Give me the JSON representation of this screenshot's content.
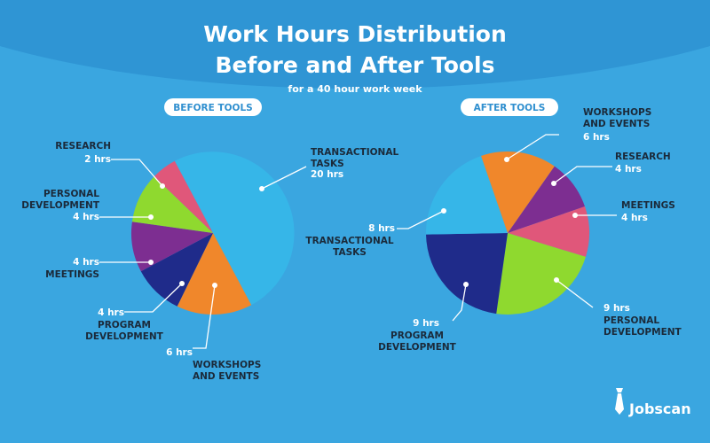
{
  "title_line1": "Work Hours Distribution",
  "title_line2": "Before and After Tools",
  "subtitle": "for a 40 hour work week",
  "brand": "Jobscan",
  "colors": {
    "background": "#3aa6e0",
    "header_arc": "#2f95d4",
    "label_text": "#1b2a3a",
    "value_text": "#ffffff"
  },
  "chart_data": [
    {
      "type": "pie",
      "title": "BEFORE TOOLS",
      "unit": "hrs",
      "slices": [
        {
          "name_lines": [
            "TRANSACTIONAL",
            "TASKS"
          ],
          "value": 20,
          "value_text": "20 hrs",
          "color": "#36b6e8"
        },
        {
          "name_lines": [
            "WORKSHOPS",
            "AND EVENTS"
          ],
          "value": 6,
          "value_text": "6 hrs",
          "color": "#f0872b"
        },
        {
          "name_lines": [
            "PROGRAM",
            "DEVELOPMENT"
          ],
          "value": 4,
          "value_text": "4 hrs",
          "color": "#1f2b8a"
        },
        {
          "name_lines": [
            "MEETINGS"
          ],
          "value": 4,
          "value_text": "4 hrs",
          "color": "#7d2e91"
        },
        {
          "name_lines": [
            "PERSONAL",
            "DEVELOPMENT"
          ],
          "value": 4,
          "value_text": "4 hrs",
          "color": "#8fd92f"
        },
        {
          "name_lines": [
            "RESEARCH"
          ],
          "value": 2,
          "value_text": "2 hrs",
          "color": "#e0577a"
        }
      ]
    },
    {
      "type": "pie",
      "title": "AFTER TOOLS",
      "unit": "hrs",
      "slices": [
        {
          "name_lines": [
            "RESEARCH"
          ],
          "value": 4,
          "value_text": "4 hrs",
          "color": "#7d2e91"
        },
        {
          "name_lines": [
            "MEETINGS"
          ],
          "value": 4,
          "value_text": "4 hrs",
          "color": "#e0577a"
        },
        {
          "name_lines": [
            "PERSONAL",
            "DEVELOPMENT"
          ],
          "value": 9,
          "value_text": "9 hrs",
          "color": "#8fd92f"
        },
        {
          "name_lines": [
            "PROGRAM",
            "DEVELOPMENT"
          ],
          "value": 9,
          "value_text": "9 hrs",
          "color": "#1f2b8a"
        },
        {
          "name_lines": [
            "TRANSACTIONAL",
            "TASKS"
          ],
          "value": 8,
          "value_text": "8 hrs",
          "color": "#36b6e8"
        },
        {
          "name_lines": [
            "WORKSHOPS",
            "AND EVENTS"
          ],
          "value": 6,
          "value_text": "6 hrs",
          "color": "#f0872b"
        }
      ]
    }
  ]
}
